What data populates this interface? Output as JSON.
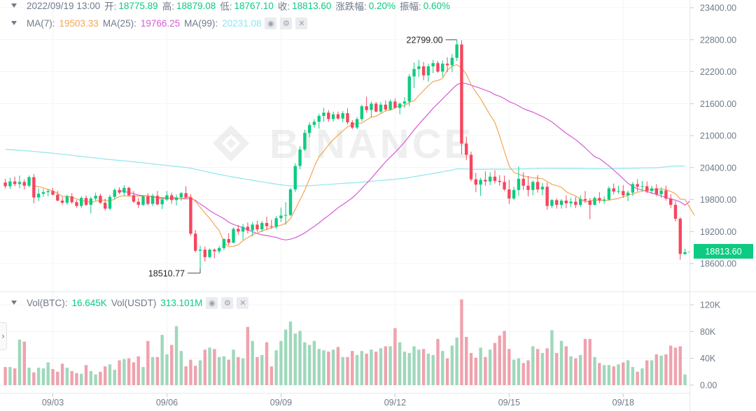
{
  "header": {
    "date": "2022/09/19 13:00",
    "open_label": "开:",
    "open": "18775.89",
    "high_label": "高:",
    "high": "18879.08",
    "low_label": "低:",
    "low": "18767.10",
    "close_label": "收:",
    "close": "18813.60",
    "change_label": "涨跌幅:",
    "change": "0.20%",
    "amp_label": "振幅:",
    "amp": "0.60%"
  },
  "ma_row": {
    "ma7_label": "MA(7):",
    "ma7": "19503.33",
    "ma25_label": "MA(25):",
    "ma25": "19766.25",
    "ma99_label": "MA(99):",
    "ma99": "20231.08"
  },
  "vol_row": {
    "btc_label": "Vol(BTC):",
    "btc": "16.645K",
    "usdt_label": "Vol(USDT)",
    "usdt": "313.101M"
  },
  "icons": [
    "eye-icon",
    "settings-icon",
    "close-icon"
  ],
  "last_price": "18813.60",
  "watermark": "BINANCE",
  "colors": {
    "up": "#0ecb81",
    "down": "#f6465d",
    "ma7": "#f3a653",
    "ma25": "#d65bd6",
    "ma99": "#8ee6ee",
    "axis_text": "#707a8a"
  },
  "chart_data": {
    "type": "candlestick",
    "symbol": "BTC",
    "interval_hours": 3,
    "price_ticks": [
      18600,
      19200,
      19800,
      20400,
      21000,
      21600,
      22200,
      22800,
      23400
    ],
    "price_tick_labels": [
      "18600.00",
      "19200.00",
      "19800.00",
      "20400.00",
      "21000.00",
      "21600.00",
      "22200.00",
      "22800.00",
      "23400.00"
    ],
    "volume_ticks": [
      0,
      40000,
      80000,
      120000
    ],
    "volume_tick_labels": [
      "0.00",
      "40K",
      "80K",
      "120K"
    ],
    "date_labels": [
      "09/03",
      "09/06",
      "09/09",
      "09/12",
      "09/15",
      "09/18"
    ],
    "date_label_indices": [
      10,
      34,
      58,
      82,
      106,
      130
    ],
    "max_annotation": {
      "label": "22799.00",
      "index": 95,
      "value": 22799
    },
    "min_annotation": {
      "label": "18510.77",
      "index": 41,
      "value": 18510.77
    },
    "candles": [
      [
        20120,
        20190,
        20010,
        20050
      ],
      [
        20050,
        20210,
        20000,
        20140
      ],
      [
        20140,
        20230,
        20050,
        20090
      ],
      [
        20090,
        20250,
        20010,
        20130
      ],
      [
        20130,
        20180,
        19990,
        20060
      ],
      [
        20060,
        20250,
        20030,
        20220
      ],
      [
        20220,
        20280,
        19730,
        19840
      ],
      [
        19840,
        20010,
        19770,
        19910
      ],
      [
        19910,
        20000,
        19850,
        19940
      ],
      [
        19940,
        20000,
        19860,
        19960
      ],
      [
        19960,
        20020,
        19880,
        19890
      ],
      [
        19890,
        19960,
        19770,
        19780
      ],
      [
        19780,
        19850,
        19700,
        19740
      ],
      [
        19740,
        19890,
        19700,
        19860
      ],
      [
        19860,
        19920,
        19720,
        19750
      ],
      [
        19750,
        19790,
        19650,
        19680
      ],
      [
        19680,
        19860,
        19640,
        19830
      ],
      [
        19830,
        19880,
        19680,
        19700
      ],
      [
        19700,
        19850,
        19540,
        19820
      ],
      [
        19820,
        19930,
        19780,
        19870
      ],
      [
        19870,
        19910,
        19720,
        19740
      ],
      [
        19740,
        19820,
        19590,
        19630
      ],
      [
        19630,
        19890,
        19600,
        19850
      ],
      [
        19850,
        20010,
        19810,
        19980
      ],
      [
        19980,
        20030,
        19900,
        19930
      ],
      [
        19930,
        20070,
        19880,
        20020
      ],
      [
        20020,
        20040,
        19860,
        19880
      ],
      [
        19880,
        19960,
        19740,
        19760
      ],
      [
        19760,
        19830,
        19640,
        19700
      ],
      [
        19700,
        19880,
        19680,
        19860
      ],
      [
        19860,
        19920,
        19690,
        19720
      ],
      [
        19720,
        19910,
        19680,
        19870
      ],
      [
        19870,
        19960,
        19690,
        19710
      ],
      [
        19710,
        19840,
        19620,
        19800
      ],
      [
        19800,
        19960,
        19770,
        19880
      ],
      [
        19880,
        19930,
        19720,
        19790
      ],
      [
        19790,
        19890,
        19690,
        19840
      ],
      [
        19840,
        19940,
        19780,
        19920
      ],
      [
        19920,
        20050,
        19820,
        19840
      ],
      [
        19840,
        19900,
        19120,
        19160
      ],
      [
        19160,
        19230,
        18810,
        18840
      ],
      [
        18840,
        18930,
        18511,
        18860
      ],
      [
        18860,
        18920,
        18640,
        18720
      ],
      [
        18720,
        18880,
        18700,
        18860
      ],
      [
        18860,
        18880,
        18700,
        18830
      ],
      [
        18830,
        18930,
        18790,
        18890
      ],
      [
        18890,
        19070,
        18850,
        19060
      ],
      [
        19060,
        19170,
        18940,
        18990
      ],
      [
        18990,
        19280,
        18980,
        19250
      ],
      [
        19250,
        19320,
        19140,
        19200
      ],
      [
        19200,
        19340,
        19040,
        19290
      ],
      [
        19290,
        19370,
        19160,
        19220
      ],
      [
        19220,
        19380,
        19110,
        19330
      ],
      [
        19330,
        19400,
        19200,
        19240
      ],
      [
        19240,
        19400,
        19190,
        19360
      ],
      [
        19360,
        19480,
        19230,
        19300
      ],
      [
        19300,
        19420,
        19250,
        19290
      ],
      [
        19290,
        19490,
        19250,
        19450
      ],
      [
        19450,
        19650,
        19380,
        19500
      ],
      [
        19500,
        19750,
        19330,
        19510
      ],
      [
        19510,
        20020,
        19490,
        19990
      ],
      [
        19990,
        20480,
        19940,
        20430
      ],
      [
        20430,
        20800,
        20370,
        20740
      ],
      [
        20740,
        21110,
        20710,
        21050
      ],
      [
        21050,
        21250,
        20970,
        21200
      ],
      [
        21200,
        21310,
        21150,
        21260
      ],
      [
        21260,
        21410,
        21130,
        21370
      ],
      [
        21370,
        21520,
        21260,
        21430
      ],
      [
        21430,
        21480,
        21260,
        21310
      ],
      [
        21310,
        21450,
        21260,
        21400
      ],
      [
        21400,
        21450,
        21300,
        21320
      ],
      [
        21320,
        21460,
        21250,
        21420
      ],
      [
        21420,
        21510,
        21210,
        21250
      ],
      [
        21250,
        21290,
        21120,
        21150
      ],
      [
        21150,
        21350,
        21120,
        21310
      ],
      [
        21310,
        21580,
        21270,
        21550
      ],
      [
        21550,
        21730,
        21430,
        21480
      ],
      [
        21480,
        21640,
        21340,
        21600
      ],
      [
        21600,
        21630,
        21440,
        21450
      ],
      [
        21450,
        21630,
        21420,
        21580
      ],
      [
        21580,
        21660,
        21460,
        21490
      ],
      [
        21490,
        21680,
        21470,
        21640
      ],
      [
        21640,
        21700,
        21510,
        21520
      ],
      [
        21520,
        21620,
        21400,
        21600
      ],
      [
        21600,
        21720,
        21520,
        21640
      ],
      [
        21640,
        22160,
        21550,
        22110
      ],
      [
        22110,
        22370,
        21890,
        22250
      ],
      [
        22250,
        22420,
        22100,
        22300
      ],
      [
        22300,
        22380,
        22040,
        22130
      ],
      [
        22130,
        22350,
        22010,
        22300
      ],
      [
        22300,
        22420,
        22170,
        22360
      ],
      [
        22360,
        22400,
        22180,
        22200
      ],
      [
        22200,
        22410,
        22100,
        22350
      ],
      [
        22350,
        22470,
        22190,
        22320
      ],
      [
        22320,
        22530,
        22190,
        22460
      ],
      [
        22460,
        22799,
        22400,
        22710
      ],
      [
        22710,
        22790,
        20650,
        20850
      ],
      [
        20850,
        20980,
        20540,
        20640
      ],
      [
        20640,
        20700,
        20140,
        20180
      ],
      [
        20180,
        20300,
        19940,
        20080
      ],
      [
        20080,
        20210,
        19870,
        20170
      ],
      [
        20170,
        20330,
        20060,
        20140
      ],
      [
        20140,
        20310,
        20070,
        20230
      ],
      [
        20230,
        20350,
        20100,
        20150
      ],
      [
        20150,
        20260,
        20060,
        20130
      ],
      [
        20130,
        20250,
        19960,
        19990
      ],
      [
        19990,
        20170,
        19720,
        19820
      ],
      [
        19820,
        20040,
        19790,
        19980
      ],
      [
        19980,
        20420,
        19870,
        20190
      ],
      [
        20190,
        20310,
        19980,
        20060
      ],
      [
        20060,
        20240,
        19860,
        19980
      ],
      [
        19980,
        20160,
        19880,
        20130
      ],
      [
        20130,
        20260,
        19930,
        19990
      ],
      [
        19990,
        20110,
        19880,
        20040
      ],
      [
        20040,
        20120,
        19610,
        19680
      ],
      [
        19680,
        19810,
        19640,
        19790
      ],
      [
        19790,
        19820,
        19630,
        19700
      ],
      [
        19700,
        19810,
        19630,
        19780
      ],
      [
        19780,
        19880,
        19640,
        19730
      ],
      [
        19730,
        19830,
        19660,
        19760
      ],
      [
        19760,
        19850,
        19640,
        19700
      ],
      [
        19700,
        19880,
        19660,
        19810
      ],
      [
        19810,
        19960,
        19740,
        19780
      ],
      [
        19780,
        19830,
        19430,
        19700
      ],
      [
        19700,
        19860,
        19690,
        19830
      ],
      [
        19830,
        19940,
        19730,
        19780
      ],
      [
        19780,
        19860,
        19720,
        19800
      ],
      [
        19800,
        20050,
        19790,
        20010
      ],
      [
        20010,
        20100,
        19900,
        19950
      ],
      [
        19950,
        20060,
        19910,
        19960
      ],
      [
        19960,
        20070,
        19830,
        19880
      ],
      [
        19880,
        19970,
        19770,
        19930
      ],
      [
        19930,
        20130,
        19870,
        20090
      ],
      [
        20090,
        20180,
        19950,
        20040
      ],
      [
        20040,
        20150,
        19960,
        20050
      ],
      [
        20050,
        20140,
        19920,
        19960
      ],
      [
        19960,
        20060,
        19900,
        20010
      ],
      [
        20010,
        20090,
        19860,
        19900
      ],
      [
        19900,
        20030,
        19830,
        19970
      ],
      [
        19970,
        20060,
        19780,
        19820
      ],
      [
        19820,
        19900,
        19640,
        19700
      ],
      [
        19700,
        19770,
        19390,
        19440
      ],
      [
        19440,
        19470,
        18670,
        18780
      ],
      [
        18776,
        18879,
        18767,
        18814
      ]
    ],
    "volumes": [
      27000,
      27000,
      25000,
      68000,
      65000,
      26000,
      19000,
      26000,
      25000,
      34000,
      24000,
      20000,
      32000,
      26000,
      21000,
      18000,
      17000,
      30000,
      21000,
      16000,
      20000,
      28000,
      31000,
      23000,
      37000,
      39000,
      40000,
      34000,
      43000,
      27000,
      66000,
      42000,
      42000,
      75000,
      46000,
      60000,
      88000,
      51000,
      28000,
      38000,
      29000,
      37000,
      53000,
      56000,
      54000,
      42000,
      43000,
      38000,
      53000,
      42000,
      40000,
      87000,
      66000,
      42000,
      45000,
      64000,
      28000,
      52000,
      66000,
      83000,
      95000,
      77000,
      81000,
      64000,
      60000,
      66000,
      54000,
      52000,
      50000,
      53000,
      57000,
      42000,
      42000,
      51000,
      45000,
      51000,
      47000,
      53000,
      50000,
      55000,
      58000,
      58000,
      85000,
      64000,
      50000,
      48000,
      58000,
      53000,
      54000,
      47000,
      45000,
      69000,
      51000,
      40000,
      59000,
      71000,
      128000,
      72000,
      48000,
      41000,
      56000,
      42000,
      53000,
      63000,
      74000,
      81000,
      54000,
      38000,
      40000,
      33000,
      37000,
      58000,
      54000,
      48000,
      55000,
      82000,
      48000,
      66000,
      58000,
      43000,
      40000,
      45000,
      69000,
      69000,
      42000,
      33000,
      30000,
      30000,
      28000,
      31000,
      34000,
      37000,
      27000,
      20000,
      25000,
      37000,
      37000,
      46000,
      44000,
      46000,
      59000,
      56000,
      58000,
      16000
    ],
    "ma7": [
      null,
      null,
      null,
      null,
      null,
      null,
      20060,
      20041,
      20018,
      19990,
      19964,
      19911,
      19860,
      19859,
      19849,
      19811,
      19779,
      19772,
      19743,
      19767,
      19793,
      19784,
      19771,
      19810,
      19857,
      19871,
      19868,
      19866,
      19866,
      19866,
      19871,
      19860,
      19825,
      19816,
      19812,
      19840,
      19831,
      19815,
      19840,
      19851,
      19766,
      19655,
      19545,
      19447,
      19327,
      19216,
      19002,
      18915,
      18922,
      18952,
      19029,
      19085,
      19141,
      19174,
      19209,
      19244,
      19271,
      19293,
      19320,
      19353,
      19445,
      19616,
      19794,
      19977,
      20189,
      20417,
      20607,
      20707,
      20825,
      20922,
      21010,
      21087,
      21164,
      21209,
      21227,
      21238,
      21294,
      21346,
      21364,
      21413,
      21463,
      21479,
      21521,
      21563,
      21564,
      21622,
      21655,
      21754,
      21843,
      21935,
      22017,
      22034,
      22076,
      22230,
      22301,
      22331,
      22270,
      22150,
      21958,
      21814,
      21692,
      21540,
      21385,
      21246,
      20991,
      20705,
      20432,
      20307,
      20276,
      20241,
      20229,
      20205,
      20202,
      20191,
      20140,
      20085,
      20063,
      20028,
      19948,
      19903,
      19867,
      19809,
      19753,
      19775,
      19788,
      19794,
      19778,
      19788,
      19806,
      19823,
      19850,
      19881,
      19904,
      19936,
      19956,
      19985,
      19988,
      19993,
      20000,
      19983,
      19952,
      19911,
      19808,
      19802,
      19651,
      19503
    ],
    "ma25": [
      null,
      null,
      null,
      null,
      null,
      null,
      null,
      null,
      null,
      null,
      null,
      null,
      null,
      null,
      null,
      null,
      null,
      null,
      null,
      null,
      null,
      null,
      null,
      null,
      19970,
      19950,
      19932,
      19910,
      19884,
      19875,
      19867,
      19853,
      19842,
      19834,
      19828,
      19822,
      19821,
      19818,
      19816,
      19822,
      19786,
      19717,
      19661,
      19592,
      19538,
      19491,
      19442,
      19377,
      19332,
      19304,
      19269,
      19233,
      19196,
      19164,
      19139,
      19125,
      19108,
      19091,
      19058,
      19042,
      19056,
      19084,
      19127,
      19175,
      19237,
      19297,
      19362,
      19434,
      19501,
      19571,
      19646,
      19705,
      19767,
      19833,
      19915,
      20011,
      20102,
      20197,
      20302,
      20406,
      20508,
      20597,
      20687,
      20779,
      20881,
      20992,
      21108,
      21212,
      21312,
      21411,
      21514,
      21601,
      21690,
      21779,
      21870,
      21954,
      21990,
      21975,
      21946,
      21917,
      21886,
      21852,
      21820,
      21769,
      21738,
      21694,
      21638,
      21603,
      21557,
      21505,
      21472,
      21440,
      21398,
      21358,
      21309,
      21256,
      21186,
      21113,
      21045,
      20985,
      20924,
      20849,
      20769,
      20685,
      20604,
      20568,
      20500,
      20434,
      20353,
      20275,
      20190,
      20104,
      20042,
      20001,
      19978,
      19948,
      19925,
      19897,
      19868,
      19838,
      19809,
      19788,
      19757,
      19697,
      19766
    ]
  }
}
